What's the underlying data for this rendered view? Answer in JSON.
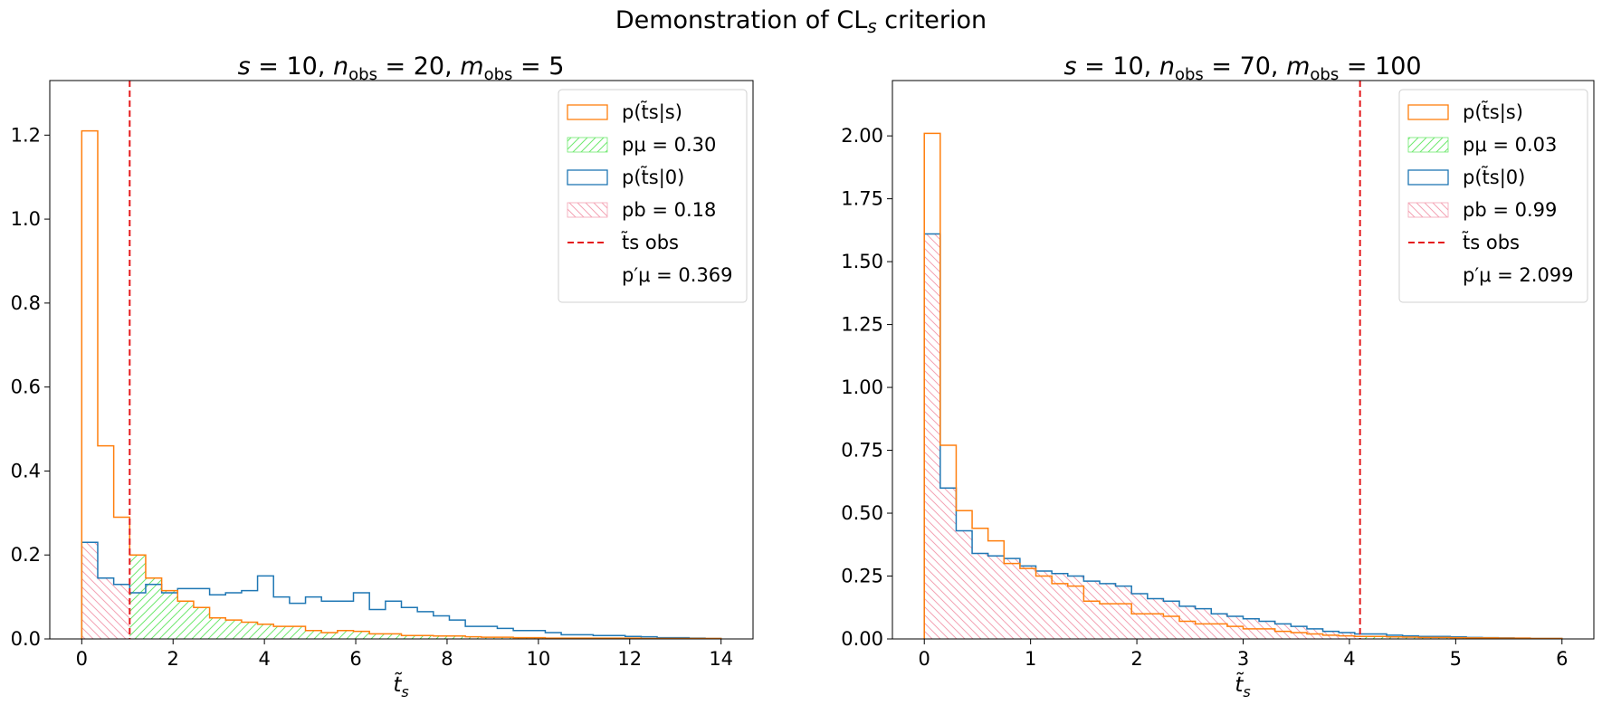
{
  "figure": {
    "suptitle": "Demonstration of CLs criterion",
    "colors": {
      "signal": "#ff7f0e",
      "background": "#1f77b4",
      "p_mu_hatch": "#6fe86f",
      "p_b_hatch": "#f4a3b4",
      "observed": "#e41a1c"
    }
  },
  "chart_data": [
    {
      "type": "histogram",
      "title": "s = 10, n_obs = 20, m_obs = 5",
      "xlabel": "t̃_s",
      "ylabel": "",
      "xlim": [
        -0.7,
        14.7
      ],
      "ylim": [
        0,
        1.33
      ],
      "xticks": [
        0,
        2,
        4,
        6,
        8,
        10,
        12,
        14
      ],
      "yticks": [
        0.0,
        0.2,
        0.4,
        0.6,
        0.8,
        1.0,
        1.2
      ],
      "ytick_labels": [
        "0.0",
        "0.2",
        "0.4",
        "0.6",
        "0.8",
        "1.0",
        "1.2"
      ],
      "bin_start": 0.0,
      "bin_width": 0.35,
      "observed_ts": 1.05,
      "legend_position": "upper right",
      "series": [
        {
          "name": "p(t̃s|s)",
          "values": [
            1.21,
            0.46,
            0.29,
            0.2,
            0.145,
            0.115,
            0.09,
            0.075,
            0.05,
            0.045,
            0.04,
            0.035,
            0.03,
            0.03,
            0.02,
            0.015,
            0.02,
            0.018,
            0.012,
            0.012,
            0.008,
            0.008,
            0.007,
            0.007,
            0.005,
            0.004,
            0.004,
            0.003,
            0.003,
            0.002,
            0.002,
            0.002,
            0.002,
            0.002,
            0.002,
            0.001,
            0.001,
            0.001,
            0.001,
            0.001
          ]
        },
        {
          "name": "p(t̃s|0)",
          "values": [
            0.23,
            0.145,
            0.13,
            0.11,
            0.13,
            0.11,
            0.12,
            0.12,
            0.105,
            0.11,
            0.115,
            0.15,
            0.1,
            0.085,
            0.1,
            0.09,
            0.09,
            0.11,
            0.07,
            0.09,
            0.075,
            0.065,
            0.055,
            0.045,
            0.03,
            0.03,
            0.025,
            0.02,
            0.02,
            0.015,
            0.01,
            0.01,
            0.008,
            0.008,
            0.006,
            0.005,
            0.003,
            0.003,
            0.002,
            0.001
          ]
        }
      ],
      "legend": [
        {
          "label": "p(t̃s|s)",
          "style": "step-signal"
        },
        {
          "label": "pμ = 0.30",
          "style": "hatch-green"
        },
        {
          "label": "p(t̃s|0)",
          "style": "step-background"
        },
        {
          "label": "pb = 0.18",
          "style": "hatch-pink"
        },
        {
          "label": "t̃s obs",
          "style": "dashed-red"
        },
        {
          "label": "p′μ = 0.369",
          "style": "none"
        }
      ]
    },
    {
      "type": "histogram",
      "title": "s = 10, n_obs = 70, m_obs = 100",
      "xlabel": "t̃_s",
      "ylabel": "",
      "xlim": [
        -0.3,
        6.3
      ],
      "ylim": [
        0,
        2.22
      ],
      "xticks": [
        0,
        1,
        2,
        3,
        4,
        5,
        6
      ],
      "yticks": [
        0.0,
        0.25,
        0.5,
        0.75,
        1.0,
        1.25,
        1.5,
        1.75,
        2.0
      ],
      "ytick_labels": [
        "0.00",
        "0.25",
        "0.50",
        "0.75",
        "1.00",
        "1.25",
        "1.50",
        "1.75",
        "2.00"
      ],
      "bin_start": 0.0,
      "bin_width": 0.15,
      "observed_ts": 4.1,
      "legend_position": "upper right",
      "series": [
        {
          "name": "p(t̃s|s)",
          "values": [
            2.01,
            0.77,
            0.51,
            0.44,
            0.39,
            0.3,
            0.28,
            0.25,
            0.22,
            0.21,
            0.15,
            0.14,
            0.14,
            0.1,
            0.1,
            0.09,
            0.07,
            0.06,
            0.06,
            0.05,
            0.04,
            0.04,
            0.03,
            0.025,
            0.02,
            0.015,
            0.012,
            0.01,
            0.01,
            0.008,
            0.007,
            0.006,
            0.006,
            0.005,
            0.004,
            0.004,
            0.003,
            0.003,
            0.002,
            0.002
          ]
        },
        {
          "name": "p(t̃s|0)",
          "values": [
            1.61,
            0.6,
            0.43,
            0.34,
            0.33,
            0.32,
            0.29,
            0.27,
            0.26,
            0.25,
            0.23,
            0.22,
            0.21,
            0.18,
            0.16,
            0.15,
            0.13,
            0.12,
            0.1,
            0.09,
            0.08,
            0.07,
            0.06,
            0.05,
            0.04,
            0.03,
            0.025,
            0.02,
            0.02,
            0.015,
            0.012,
            0.01,
            0.01,
            0.008,
            0.006,
            0.005,
            0.004,
            0.003,
            0.002,
            0.002
          ]
        }
      ],
      "legend": [
        {
          "label": "p(t̃s|s)",
          "style": "step-signal"
        },
        {
          "label": "pμ = 0.03",
          "style": "hatch-green"
        },
        {
          "label": "p(t̃s|0)",
          "style": "step-background"
        },
        {
          "label": "pb = 0.99",
          "style": "hatch-pink"
        },
        {
          "label": "t̃s obs",
          "style": "dashed-red"
        },
        {
          "label": "p′μ = 2.099",
          "style": "none"
        }
      ]
    }
  ]
}
